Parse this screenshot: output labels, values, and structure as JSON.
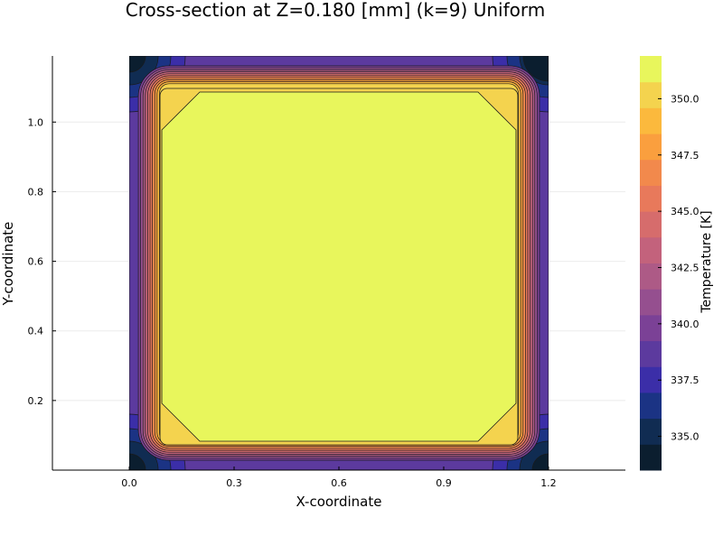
{
  "chart_data": {
    "type": "contour",
    "title": "Cross-section at Z=0.180 [mm] (k=9) Uniform",
    "xlabel": "X-coordinate",
    "ylabel": "Y-coordinate",
    "colorbar_label": "Temperature [K]",
    "xlim": [
      -0.22,
      1.42
    ],
    "ylim": [
      0.0,
      1.19
    ],
    "domain": {
      "x": [
        0.0,
        1.2
      ],
      "y": [
        0.0,
        1.19
      ]
    },
    "xticks": [
      0.0,
      0.3,
      0.6,
      0.9,
      1.2
    ],
    "xtick_labels": [
      "0.0",
      "0.3",
      "0.6",
      "0.9",
      "1.2"
    ],
    "yticks": [
      0.2,
      0.4,
      0.6,
      0.8,
      1.0
    ],
    "ytick_labels": [
      "0.2",
      "0.4",
      "0.6",
      "0.8",
      "1.0"
    ],
    "grid": true,
    "colorbar": {
      "range": [
        333.5,
        351.9
      ],
      "ticks": [
        335.0,
        337.5,
        340.0,
        342.5,
        345.0,
        347.5,
        350.0
      ],
      "tick_labels": [
        "335.0",
        "337.5",
        "340.0",
        "342.5",
        "345.0",
        "347.5",
        "350.0"
      ],
      "level_colors": [
        "#0b1e2f",
        "#102c52",
        "#1b3384",
        "#3b2ea8",
        "#5c3a9e",
        "#7b4196",
        "#954f8f",
        "#ad5a86",
        "#c3627c",
        "#d66c6c",
        "#e8795b",
        "#f2894c",
        "#fa9f3e",
        "#fbb93d",
        "#f4d34e",
        "#e8f65c"
      ]
    },
    "regions": [
      {
        "name": "outer-band",
        "level": 4
      },
      {
        "name": "edge-band-1",
        "level": 5
      },
      {
        "name": "edge-band-2",
        "level": 6
      },
      {
        "name": "edge-band-3",
        "level": 7
      },
      {
        "name": "edge-band-4",
        "level": 8
      },
      {
        "name": "edge-band-5",
        "level": 9
      },
      {
        "name": "edge-band-6",
        "level": 10
      },
      {
        "name": "edge-band-7",
        "level": 11
      },
      {
        "name": "edge-band-8",
        "level": 12
      },
      {
        "name": "edge-band-9",
        "level": 13
      },
      {
        "name": "edge-band-10",
        "level": 14
      },
      {
        "name": "core-hot",
        "level": 15
      }
    ]
  }
}
